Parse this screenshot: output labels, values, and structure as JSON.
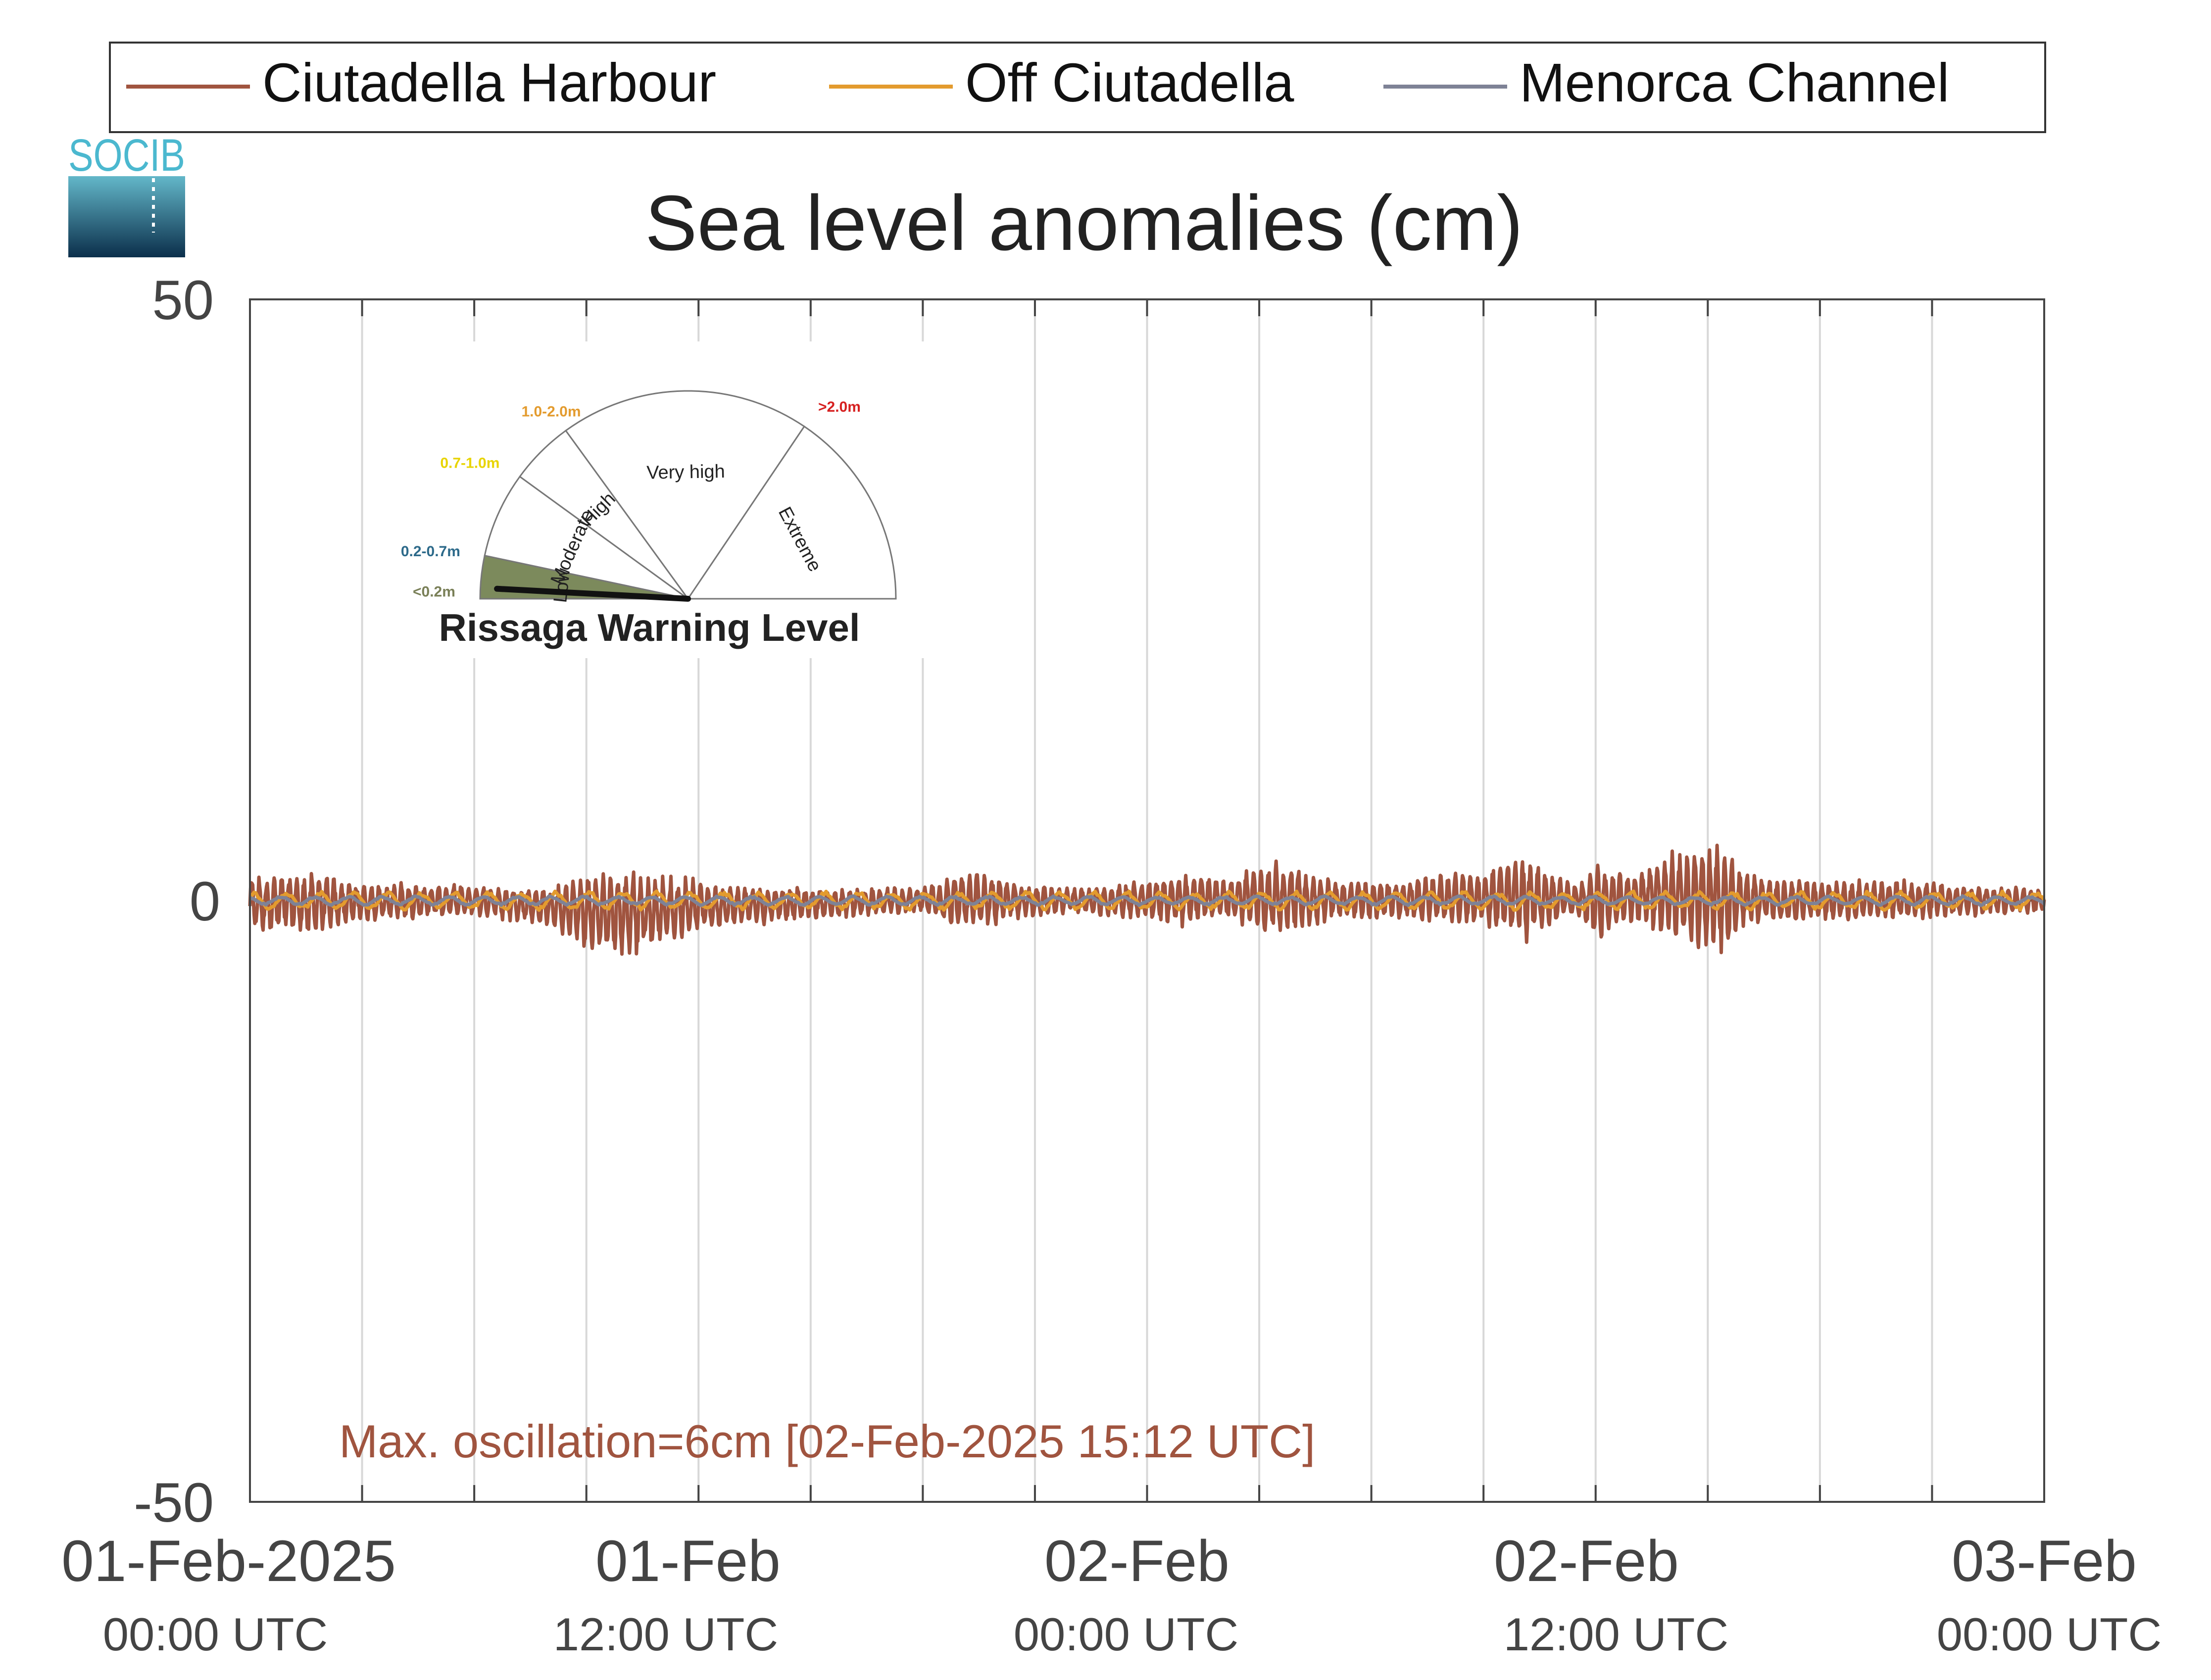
{
  "legend": {
    "items": [
      {
        "label": "Ciutadella Harbour",
        "color": "#a0543f"
      },
      {
        "label": "Off Ciutadella",
        "color": "#e39b2e"
      },
      {
        "label": "Menorca Channel",
        "color": "#7e8296"
      }
    ]
  },
  "logo": {
    "text": "SOCIB"
  },
  "gauge": {
    "title": "Rissaga Warning Level",
    "level": "Low",
    "sectors": [
      {
        "label": "Low",
        "range": "<0.2m",
        "range_color": "#7a8058",
        "fill": "#7c8a5c"
      },
      {
        "label": "Moderate",
        "range": "0.2-0.7m",
        "range_color": "#2d6a8a",
        "fill": "#ffffff"
      },
      {
        "label": "High",
        "range": "0.7-1.0m",
        "range_color": "#e8d400",
        "fill": "#ffffff"
      },
      {
        "label": "Very high",
        "range": "1.0-2.0m",
        "range_color": "#e39b2e",
        "fill": "#ffffff"
      },
      {
        "label": "Extreme",
        "range": ">2.0m",
        "range_color": "#d62020",
        "fill": "#ffffff"
      }
    ]
  },
  "chart_data": {
    "type": "line",
    "title": "Sea level anomalies (cm)",
    "xlabel": "",
    "ylabel": "",
    "ylim": [
      -50,
      50
    ],
    "yticks": [
      -50,
      0,
      50
    ],
    "xlim_hours": [
      0,
      48
    ],
    "grid_x_every_hours": 3,
    "grid": true,
    "legend_position": "top",
    "xtick_labels": [
      {
        "hour": 0,
        "date": "01-Feb-2025",
        "time": "00:00 UTC"
      },
      {
        "hour": 12,
        "date": "01-Feb",
        "time": "12:00 UTC"
      },
      {
        "hour": 24,
        "date": "02-Feb",
        "time": "00:00 UTC"
      },
      {
        "hour": 36,
        "date": "02-Feb",
        "time": "12:00 UTC"
      },
      {
        "hour": 48,
        "date": "03-Feb",
        "time": "00:00 UTC"
      }
    ],
    "series": [
      {
        "name": "Ciutadella Harbour",
        "color": "#a0543f",
        "amplitude_envelope": {
          "hours": [
            0,
            1.5,
            3,
            6,
            8,
            9,
            10,
            12,
            13,
            15,
            18,
            19,
            21,
            22,
            24,
            25,
            26,
            27,
            27.5,
            29,
            31,
            32,
            33,
            34,
            35,
            35.5,
            36,
            37,
            38,
            38.8,
            39.5,
            40,
            42,
            44,
            46,
            48
          ],
          "values": [
            2,
            2.5,
            1.5,
            1.2,
            1.5,
            3,
            3.5,
            2,
            1.5,
            1.2,
            1,
            2.5,
            1.2,
            1,
            1.5,
            2,
            1.5,
            2.5,
            3,
            1.5,
            1.5,
            2,
            2,
            3.5,
            1.8,
            1.5,
            3,
            2,
            3.5,
            4,
            4.5,
            2,
            1.5,
            1.5,
            1.2,
            1
          ]
        },
        "offset_envelope": {
          "hours": [
            0,
            6,
            8,
            9,
            10,
            12,
            18,
            24,
            26,
            27.5,
            30,
            34,
            36,
            38,
            39,
            41,
            48
          ],
          "values": [
            -0.3,
            0,
            -0.5,
            -1,
            -1,
            -0.5,
            0,
            0,
            0.2,
            0.2,
            0,
            0.3,
            0,
            0.5,
            0.3,
            0,
            0
          ]
        }
      },
      {
        "name": "Off Ciutadella",
        "color": "#e39b2e",
        "amplitude_cm": 0.8
      },
      {
        "name": "Menorca Channel",
        "color": "#7e8296",
        "amplitude_cm": 0.4
      }
    ],
    "annotation": {
      "text": "Max. oscillation=6cm [02-Feb-2025 15:12 UTC]",
      "color": "#a0543f"
    }
  }
}
